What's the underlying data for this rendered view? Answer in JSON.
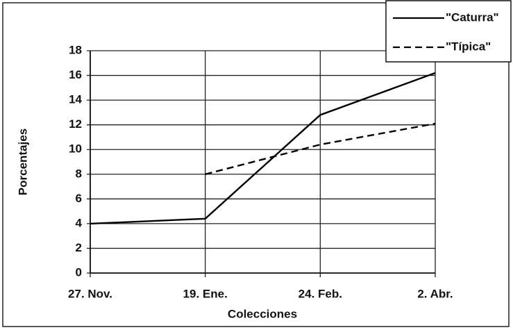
{
  "chart_data": {
    "type": "line",
    "xlabel": "Colecciones",
    "ylabel": "Porcentajes",
    "categories": [
      "27. Nov.",
      "19. Ene.",
      "24. Feb.",
      "2. Abr."
    ],
    "series": [
      {
        "name": "\"Caturra\"",
        "color": "#000000",
        "dash": "solid",
        "values": [
          4,
          4.4,
          12.8,
          16.2
        ]
      },
      {
        "name": "\"Típica\"",
        "color": "#000000",
        "dash": "dashed",
        "values": [
          null,
          8,
          10.4,
          12.1
        ]
      }
    ],
    "ylim": [
      0,
      18
    ],
    "yticks": [
      0,
      2,
      4,
      6,
      8,
      10,
      12,
      14,
      16,
      18
    ],
    "grid": true,
    "legend": "upper right"
  }
}
